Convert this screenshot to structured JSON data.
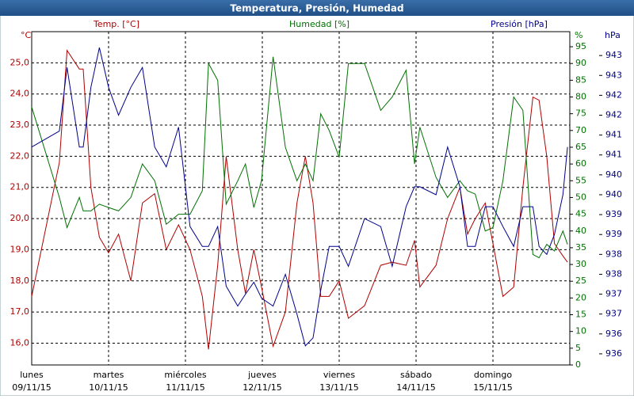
{
  "chart_data": {
    "type": "line",
    "title": "Temperatura, Presión, Humedad",
    "x": [
      0,
      0.36,
      0.46,
      0.62,
      0.67,
      0.77,
      0.88,
      1,
      1.13,
      1.29,
      1.44,
      1.6,
      1.75,
      1.91,
      2.06,
      2.22,
      2.3,
      2.42,
      2.53,
      2.68,
      2.78,
      2.89,
      2.99,
      3.14,
      3.3,
      3.45,
      3.56,
      3.66,
      3.76,
      3.87,
      4,
      4.12,
      4.33,
      4.54,
      4.69,
      4.87,
      4.98,
      5.05,
      5.26,
      5.41,
      5.57,
      5.67,
      5.77,
      5.9,
      6,
      6.13,
      6.27,
      6.39,
      6.52,
      6.6,
      6.7,
      6.8,
      6.91,
      6.97
    ],
    "xlim": [
      0,
      7
    ],
    "xticks": [
      {
        "value": 0,
        "label": "lunes"
      },
      {
        "value": 1,
        "label": "martes"
      },
      {
        "value": 2,
        "label": "miércoles"
      },
      {
        "value": 3,
        "label": "jueves"
      },
      {
        "value": 4,
        "label": "viernes"
      },
      {
        "value": 5,
        "label": "sábado"
      },
      {
        "value": 6,
        "label": "domingo"
      }
    ],
    "xtick_dates": [
      "09/11/15",
      "10/11/15",
      "11/11/15",
      "12/11/15",
      "13/11/15",
      "14/11/15",
      "15/11/15"
    ],
    "grid": true,
    "ylim": [
      15.3,
      26
    ],
    "yunit": "°C",
    "yticks": [
      {
        "value": 16,
        "label": "16,0"
      },
      {
        "value": 17,
        "label": "17,0"
      },
      {
        "value": 18,
        "label": "18,0"
      },
      {
        "value": 19,
        "label": "19,0"
      },
      {
        "value": 20,
        "label": "20,0"
      },
      {
        "value": 21,
        "label": "21,0"
      },
      {
        "value": 22,
        "label": "22,0"
      },
      {
        "value": 23,
        "label": "23,0"
      },
      {
        "value": 24,
        "label": "24,0"
      },
      {
        "value": 25,
        "label": "25,0"
      }
    ],
    "y2lim": [
      0,
      99.5
    ],
    "y2unit": "%",
    "y2ticks": [
      0,
      5,
      10,
      15,
      20,
      25,
      30,
      35,
      40,
      45,
      50,
      55,
      60,
      65,
      70,
      75,
      80,
      85,
      90,
      95
    ],
    "y3lim": [
      935.52,
      943.9
    ],
    "y3unit": "hPa",
    "y3ticks": [
      {
        "value": 935.8,
        "label": "936"
      },
      {
        "value": 936.3,
        "label": "936"
      },
      {
        "value": 936.8,
        "label": "937"
      },
      {
        "value": 937.3,
        "label": "937"
      },
      {
        "value": 937.8,
        "label": "938"
      },
      {
        "value": 938.3,
        "label": "938"
      },
      {
        "value": 938.8,
        "label": "939"
      },
      {
        "value": 939.3,
        "label": "939"
      },
      {
        "value": 939.8,
        "label": "940"
      },
      {
        "value": 940.3,
        "label": "940"
      },
      {
        "value": 940.8,
        "label": "941"
      },
      {
        "value": 941.3,
        "label": "941"
      },
      {
        "value": 941.8,
        "label": "942"
      },
      {
        "value": 942.3,
        "label": "942"
      },
      {
        "value": 942.8,
        "label": "943"
      },
      {
        "value": 943.3,
        "label": "943"
      }
    ],
    "series": [
      {
        "name": "Temp. [°C]",
        "color": "#b00000",
        "axis": "y",
        "values": [
          17.5,
          21.8,
          25.4,
          24.8,
          24.8,
          21,
          19.4,
          18.9,
          19.5,
          18,
          20.5,
          20.8,
          19,
          19.8,
          19,
          17.5,
          15.8,
          18.5,
          22,
          19,
          17.6,
          19,
          17.8,
          15.9,
          17,
          20.5,
          22,
          20.5,
          17.5,
          17.5,
          18,
          16.8,
          17.2,
          18.5,
          18.6,
          18.5,
          19.3,
          17.8,
          18.5,
          20,
          21,
          19.5,
          20,
          20.5,
          19.2,
          17.5,
          17.8,
          21,
          23.9,
          23.8,
          22,
          19.2,
          18.8,
          18.6
        ]
      },
      {
        "name": "Humedad [%]",
        "color": "#007000",
        "axis": "y2",
        "values": [
          77,
          50,
          41,
          50,
          46,
          46,
          48,
          47,
          46,
          50,
          60,
          55,
          42,
          45,
          45,
          52,
          90,
          85,
          48,
          55,
          60,
          47,
          55,
          92,
          65,
          55,
          60,
          55,
          75,
          70,
          62,
          90,
          90,
          76,
          80,
          88,
          60,
          71,
          56,
          50,
          55,
          52,
          51,
          40,
          41,
          55,
          80,
          76,
          33,
          32,
          36,
          34,
          40,
          36
        ]
      },
      {
        "name": "Presión [hPa]",
        "color": "#00008b",
        "axis": "y3",
        "values": [
          941,
          941.4,
          943,
          941,
          941,
          942.5,
          943.5,
          942.5,
          941.8,
          942.5,
          943,
          941,
          940.5,
          941.5,
          939,
          938.5,
          938.5,
          939,
          937.5,
          937,
          937.3,
          937.6,
          937.2,
          937,
          937.8,
          936.8,
          936,
          936.2,
          937.4,
          938.5,
          938.5,
          938,
          939.2,
          939,
          938,
          939.5,
          940,
          940,
          939.8,
          941,
          940,
          938.5,
          938.5,
          939.5,
          939.5,
          939,
          938.5,
          939.5,
          939.5,
          938.5,
          938.3,
          938.8,
          939.8,
          941
        ]
      }
    ]
  }
}
